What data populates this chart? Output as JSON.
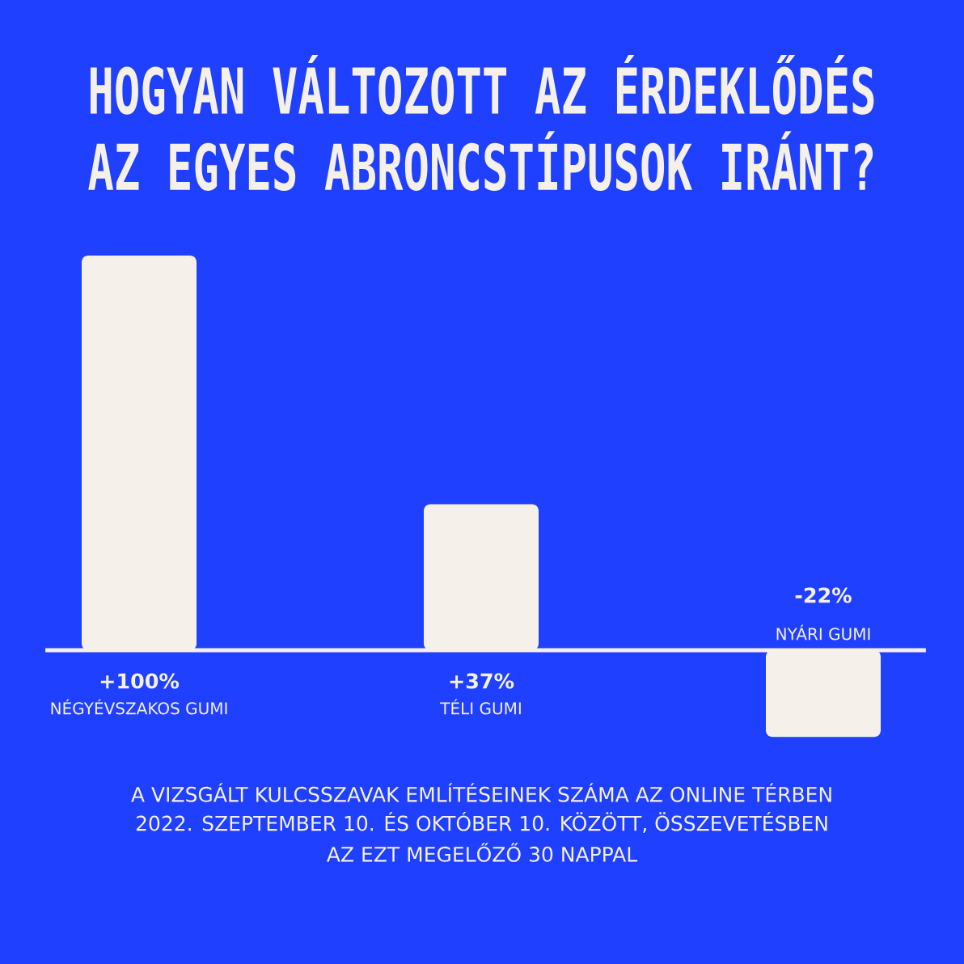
{
  "chart_data": {
    "type": "bar",
    "title": "HOGYAN VÁLTOZOTT AZ ÉRDEKLŐDÉS AZ EGYES ABRONCSTÍPUSOK IRÁNT?",
    "categories": [
      "NÉGYÉVSZAKOS GUMI",
      "TÉLI GUMI",
      "NYÁRI GUMI"
    ],
    "values": [
      100,
      37,
      -22
    ],
    "value_labels": [
      "+100%",
      "+37%",
      "-22%"
    ],
    "color": "#f5f1ea",
    "annotations": [
      "A VIZSGÁLT KULCSSZAVAK EMLÍTÉSEINEK SZÁMA AZ ONLINE TÉRBEN",
      "2022. SZEPTEMBER 10. ÉS OKTÓBER 10. KÖZÖTT, ÖSSZEVETÉSBEN",
      "AZ EZT MEGELŐZŐ 30 NAPPAL"
    ]
  }
}
